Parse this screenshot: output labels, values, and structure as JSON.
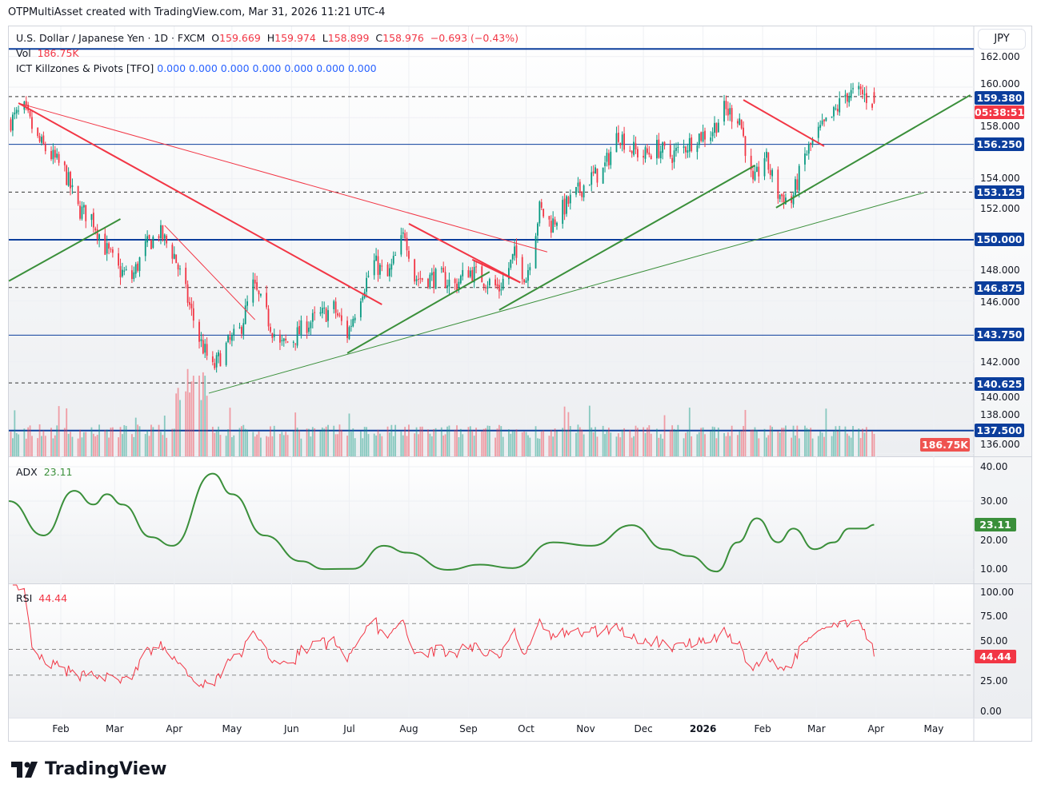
{
  "header": {
    "attribution": "OTPMultiAsset created with TradingView.com, Mar 31, 2026 11:21 UTC-4"
  },
  "legend": {
    "symbol": "U.S. Dollar / Japanese Yen · 1D · FXCM",
    "o_label": "O",
    "o": "159.669",
    "h_label": "H",
    "h": "159.974",
    "l_label": "L",
    "l": "158.899",
    "c_label": "C",
    "c": "158.976",
    "change": "−0.693 (−0.43%)",
    "vol_label": "Vol",
    "vol": "186.75K",
    "indicator": "ICT Killzones & Pivots [TFO]",
    "indicator_values": [
      "0.000",
      "0.000",
      "0.000",
      "0.000",
      "0.000",
      "0.000",
      "0.000"
    ]
  },
  "currency": "JPY",
  "colors": {
    "up": "#089981",
    "down": "#f23645",
    "level": "#0c3e9c",
    "trend_red": "#f23645",
    "trend_green": "#3a8f3a",
    "adx": "#3a8f3a",
    "rsi": "#f23645"
  },
  "price_axis": {
    "ticks": [
      "162.000",
      "160.000",
      "158.000",
      "154.000",
      "152.000",
      "148.000",
      "146.000",
      "142.000",
      "140.000",
      "138.000",
      "136.000"
    ],
    "tick_values": [
      162,
      160,
      158,
      154,
      152,
      148,
      146,
      142,
      140,
      138,
      136
    ]
  },
  "level_labels": [
    {
      "text": "159.380",
      "value": 159.38
    },
    {
      "text": "156.250",
      "value": 156.25
    },
    {
      "text": "153.125",
      "value": 153.125
    },
    {
      "text": "150.000",
      "value": 150
    },
    {
      "text": "146.875",
      "value": 146.875
    },
    {
      "text": "143.750",
      "value": 143.75
    },
    {
      "text": "140.625",
      "value": 140.625
    },
    {
      "text": "137.500",
      "value": 137.5
    }
  ],
  "countdown": "05:38:51",
  "vol_badge": "186.75K",
  "adx": {
    "label": "ADX",
    "value": "23.11",
    "ticks": [
      "40.00",
      "30.00",
      "20.00",
      "10.00"
    ]
  },
  "rsi": {
    "label": "RSI",
    "value": "44.44",
    "ticks": [
      "100.00",
      "75.00",
      "50.00",
      "25.00",
      "0.00"
    ]
  },
  "time_axis": [
    {
      "label": "Feb",
      "date": "2025-02-01"
    },
    {
      "label": "Mar",
      "date": "2025-03-01"
    },
    {
      "label": "Apr",
      "date": "2025-04-01"
    },
    {
      "label": "May",
      "date": "2025-05-01"
    },
    {
      "label": "Jun",
      "date": "2025-06-01"
    },
    {
      "label": "Jul",
      "date": "2025-07-01"
    },
    {
      "label": "Aug",
      "date": "2025-08-01"
    },
    {
      "label": "Sep",
      "date": "2025-09-01"
    },
    {
      "label": "Oct",
      "date": "2025-10-01"
    },
    {
      "label": "Nov",
      "date": "2025-11-01"
    },
    {
      "label": "Dec",
      "date": "2025-12-01"
    },
    {
      "label": "2026",
      "date": "2026-01-01"
    },
    {
      "label": "Feb",
      "date": "2026-02-01"
    },
    {
      "label": "Mar",
      "date": "2026-03-01"
    },
    {
      "label": "Apr",
      "date": "2026-04-01"
    },
    {
      "label": "May",
      "date": "2026-05-01"
    }
  ],
  "footer": {
    "brand": "TradingView"
  },
  "chart_data": {
    "type": "candlestick",
    "title": "U.S. Dollar / Japanese Yen · 1D · FXCM",
    "ylim": [
      135.5,
      163
    ],
    "horizontal_levels": [
      {
        "value": 162.5,
        "style": "solid"
      },
      {
        "value": 159.38,
        "style": "dashed"
      },
      {
        "value": 156.25,
        "style": "solid"
      },
      {
        "value": 153.125,
        "style": "dashed"
      },
      {
        "value": 150,
        "style": "solid"
      },
      {
        "value": 146.875,
        "style": "dashed"
      },
      {
        "value": 143.75,
        "style": "solid"
      },
      {
        "value": 140.625,
        "style": "dashed"
      },
      {
        "value": 137.5,
        "style": "solid"
      }
    ],
    "approx_close_path": [
      [
        "2025-01-06",
        157.8
      ],
      [
        "2025-01-13",
        158.5
      ],
      [
        "2025-01-20",
        156.5
      ],
      [
        "2025-02-03",
        154.5
      ],
      [
        "2025-02-10",
        152
      ],
      [
        "2025-02-17",
        151.5
      ],
      [
        "2025-02-24",
        149.5
      ],
      [
        "2025-03-03",
        148
      ],
      [
        "2025-03-10",
        147.5
      ],
      [
        "2025-03-17",
        149.5
      ],
      [
        "2025-03-24",
        150.5
      ],
      [
        "2025-04-01",
        149
      ],
      [
        "2025-04-07",
        146.5
      ],
      [
        "2025-04-14",
        143.5
      ],
      [
        "2025-04-21",
        141.5
      ],
      [
        "2025-04-28",
        143
      ],
      [
        "2025-05-05",
        144
      ],
      [
        "2025-05-12",
        147
      ],
      [
        "2025-05-19",
        145
      ],
      [
        "2025-05-26",
        143
      ],
      [
        "2025-06-02",
        143.5
      ],
      [
        "2025-06-09",
        144.5
      ],
      [
        "2025-06-16",
        145
      ],
      [
        "2025-06-23",
        145.5
      ],
      [
        "2025-06-30",
        143.8
      ],
      [
        "2025-07-07",
        146.5
      ],
      [
        "2025-07-14",
        148.5
      ],
      [
        "2025-07-21",
        147.5
      ],
      [
        "2025-07-30",
        150.5
      ],
      [
        "2025-08-04",
        147.5
      ],
      [
        "2025-08-11",
        147.5
      ],
      [
        "2025-08-18",
        147.5
      ],
      [
        "2025-08-25",
        147
      ],
      [
        "2025-09-01",
        148
      ],
      [
        "2025-09-08",
        147.5
      ],
      [
        "2025-09-17",
        146.8
      ],
      [
        "2025-09-25",
        149
      ],
      [
        "2025-10-01",
        147.5
      ],
      [
        "2025-10-08",
        152
      ],
      [
        "2025-10-14",
        151
      ],
      [
        "2025-10-20",
        152
      ],
      [
        "2025-10-27",
        153
      ],
      [
        "2025-11-03",
        154
      ],
      [
        "2025-11-10",
        154.5
      ],
      [
        "2025-11-18",
        157
      ],
      [
        "2025-11-24",
        156
      ],
      [
        "2025-12-01",
        155.5
      ],
      [
        "2025-12-08",
        156
      ],
      [
        "2025-12-15",
        155.5
      ],
      [
        "2025-12-22",
        156
      ],
      [
        "2025-12-29",
        156.8
      ],
      [
        "2026-01-05",
        157
      ],
      [
        "2026-01-12",
        158.5
      ],
      [
        "2026-01-20",
        158
      ],
      [
        "2026-01-27",
        153.5
      ],
      [
        "2026-02-02",
        155.5
      ],
      [
        "2026-02-09",
        153
      ],
      [
        "2026-02-16",
        152.5
      ],
      [
        "2026-02-23",
        155.5
      ],
      [
        "2026-03-02",
        157
      ],
      [
        "2026-03-09",
        158
      ],
      [
        "2026-03-16",
        159.5
      ],
      [
        "2026-03-24",
        159.6
      ],
      [
        "2026-03-31",
        158.976
      ]
    ],
    "trendlines": [
      {
        "color": "red",
        "width": 2,
        "from": [
          "2025-01-10",
          158.95
        ],
        "to": [
          "2025-07-18",
          145.76
        ]
      },
      {
        "color": "red",
        "width": 1,
        "from": [
          "2025-01-10",
          158.95
        ],
        "to": [
          "2025-10-12",
          149.2
        ]
      },
      {
        "color": "red",
        "width": 1,
        "from": [
          "2025-03-27",
          150.94
        ],
        "to": [
          "2025-05-13",
          144.76
        ]
      },
      {
        "color": "red",
        "width": 2,
        "from": [
          "2025-08-01",
          151.05
        ],
        "to": [
          "2025-09-28",
          147.2
        ]
      },
      {
        "color": "red",
        "width": 2,
        "from": [
          "2025-09-03",
          148.7
        ],
        "to": [
          "2025-09-28",
          147.2
        ]
      },
      {
        "color": "red",
        "width": 2,
        "from": [
          "2026-01-22",
          159.16
        ],
        "to": [
          "2026-03-05",
          156.13
        ]
      },
      {
        "color": "green",
        "width": 2,
        "from": [
          "2025-01-05",
          147.3
        ],
        "to": [
          "2025-03-04",
          151.36
        ]
      },
      {
        "color": "green",
        "width": 2,
        "from": [
          "2025-06-30",
          142.57
        ],
        "to": [
          "2025-09-12",
          147.9
        ]
      },
      {
        "color": "green",
        "width": 1,
        "from": [
          "2025-04-19",
          139.95
        ],
        "to": [
          "2026-04-26",
          153.09
        ]
      },
      {
        "color": "green",
        "width": 2,
        "from": [
          "2025-09-17",
          145.4
        ],
        "to": [
          "2026-01-28",
          154.87
        ]
      },
      {
        "color": "green",
        "width": 2,
        "from": [
          "2026-02-08",
          152.1
        ],
        "to": [
          "2026-05-20",
          159.48
        ]
      }
    ],
    "adx_series": [
      [
        "2025-01-05",
        30
      ],
      [
        "2025-01-23",
        20
      ],
      [
        "2025-02-08",
        33
      ],
      [
        "2025-02-18",
        29
      ],
      [
        "2025-02-25",
        32
      ],
      [
        "2025-03-05",
        29
      ],
      [
        "2025-03-20",
        19.5
      ],
      [
        "2025-03-31",
        17
      ],
      [
        "2025-04-21",
        38
      ],
      [
        "2025-05-01",
        32
      ],
      [
        "2025-05-18",
        20
      ],
      [
        "2025-06-06",
        12.5
      ],
      [
        "2025-06-18",
        10.2
      ],
      [
        "2025-07-03",
        10.3
      ],
      [
        "2025-07-19",
        17
      ],
      [
        "2025-07-31",
        15
      ],
      [
        "2025-08-21",
        10
      ],
      [
        "2025-09-07",
        11.5
      ],
      [
        "2025-09-24",
        10.5
      ],
      [
        "2025-10-15",
        18
      ],
      [
        "2025-11-04",
        17
      ],
      [
        "2025-11-25",
        23
      ],
      [
        "2025-12-12",
        16
      ],
      [
        "2025-12-25",
        14
      ],
      [
        "2026-01-08",
        9.5
      ],
      [
        "2026-01-19",
        18
      ],
      [
        "2026-01-29",
        25
      ],
      [
        "2026-02-09",
        18
      ],
      [
        "2026-02-17",
        22
      ],
      [
        "2026-02-28",
        16
      ],
      [
        "2026-03-10",
        18
      ],
      [
        "2026-03-18",
        22
      ],
      [
        "2026-03-26",
        22
      ],
      [
        "2026-03-31",
        23.11
      ]
    ],
    "rsi_levels": [
      70,
      50,
      30
    ],
    "rsi_last": 44.44,
    "adx_last": 23.11,
    "volume_last": "186.75K"
  }
}
